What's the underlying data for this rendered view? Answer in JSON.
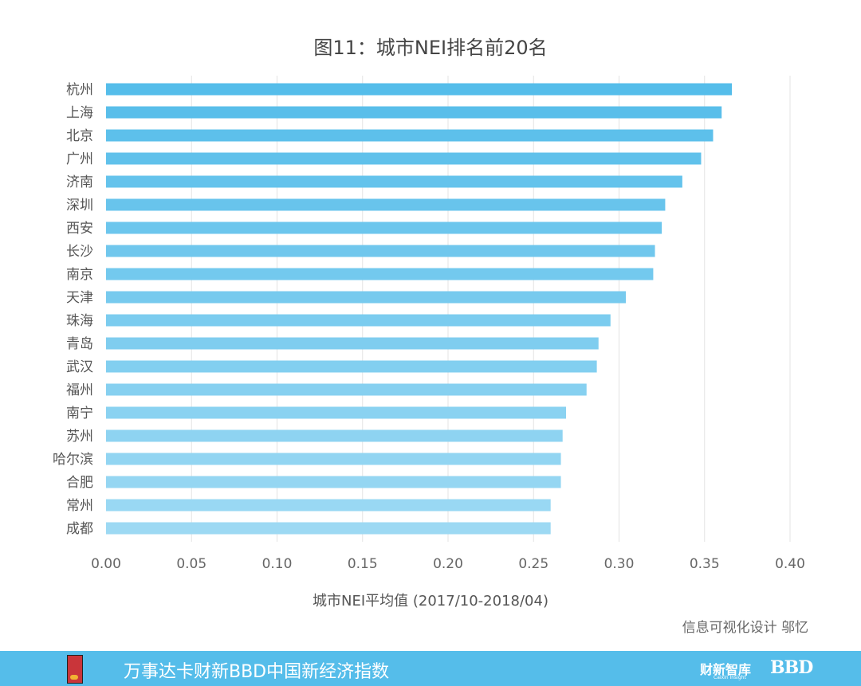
{
  "title": "图11：城市NEI排名前20名",
  "footer": {
    "text": "万事达卡财新BBD中国新经济指数",
    "brand_caixin": "财新智库",
    "brand_caixin_sub": "Caixin Insight",
    "brand_bbd": "BBD"
  },
  "credit": "信息可视化设计 邬忆",
  "colors": {
    "bar_top": "#55bdea",
    "bar_bottom": "#9dd9f3",
    "grid": "#e3e3e3",
    "footer": "#55bdea"
  },
  "chart_data": {
    "type": "bar",
    "orientation": "horizontal",
    "title": "图11：城市NEI排名前20名",
    "xlabel": "城市NEI平均值 (2017/10-2018/04)",
    "ylabel": "",
    "xlim": [
      0,
      0.4
    ],
    "xticks": [
      "0.00",
      "0.05",
      "0.10",
      "0.15",
      "0.20",
      "0.25",
      "0.30",
      "0.35",
      "0.40"
    ],
    "grid": "vertical",
    "categories": [
      "杭州",
      "上海",
      "北京",
      "广州",
      "济南",
      "深圳",
      "西安",
      "长沙",
      "南京",
      "天津",
      "珠海",
      "青岛",
      "武汉",
      "福州",
      "南宁",
      "苏州",
      "哈尔滨",
      "合肥",
      "常州",
      "成都"
    ],
    "values": [
      0.366,
      0.36,
      0.355,
      0.348,
      0.337,
      0.327,
      0.325,
      0.321,
      0.32,
      0.304,
      0.295,
      0.288,
      0.287,
      0.281,
      0.269,
      0.267,
      0.266,
      0.266,
      0.26,
      0.26
    ]
  }
}
